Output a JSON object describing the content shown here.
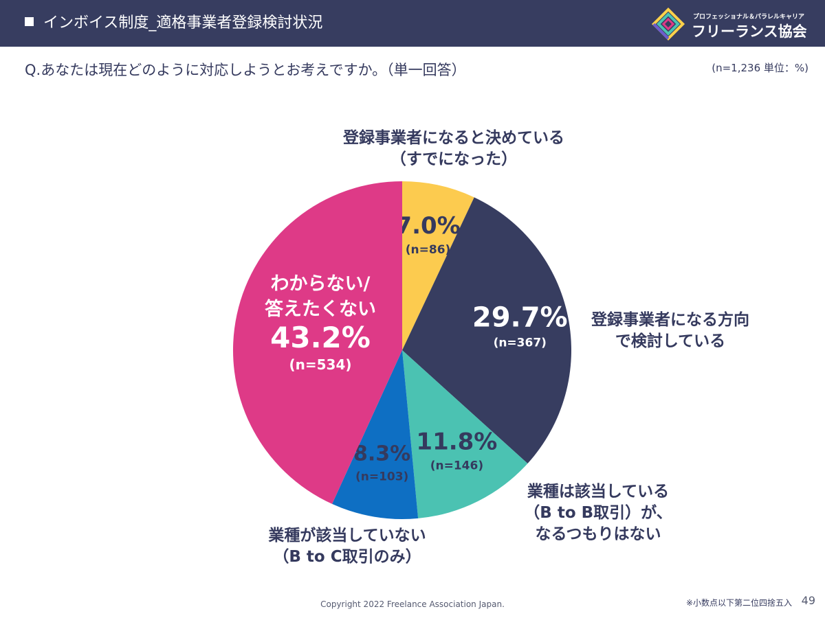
{
  "header": {
    "title": "インボイス制度_適格事業者登録検討状況",
    "logo_subtitle": "プロフェッショナル＆パラレルキャリア",
    "logo_name": "フリーランス協会"
  },
  "question": "Q.あなたは現在どのように対応しようとお考えですか。（単一回答）",
  "sample_note": "(n=1,236 単位：%)",
  "chart_data": {
    "type": "pie",
    "title": "",
    "slices": [
      {
        "line1": "登録事業者になると決めている",
        "line2": "（すでになった）",
        "value": 7.0,
        "pct": "7.0%",
        "n": "(n=86)",
        "color": "#fccb4f",
        "text_color": "#353a5e"
      },
      {
        "line1": "登録事業者になる方向",
        "line2": "で検討している",
        "value": 29.7,
        "pct": "29.7%",
        "n": "(n=367)",
        "color": "#373d60",
        "text_color": "#ffffff"
      },
      {
        "line1": "業種は該当している",
        "line2": "（B to B取引）が、",
        "line3": "なるつもりはない",
        "value": 11.8,
        "pct": "11.8%",
        "n": "(n=146)",
        "color": "#4bc2b2",
        "text_color": "#353a5e"
      },
      {
        "line1": "業種が該当していない",
        "line2": "（B to C取引のみ）",
        "value": 8.3,
        "pct": "8.3%",
        "n": "(n=103)",
        "color": "#0e6fc3",
        "text_color": "#353a5e"
      },
      {
        "line1": "わからない/",
        "line2": "答えたくない",
        "value": 43.2,
        "pct": "43.2%",
        "n": "(n=534)",
        "color": "#de3a87",
        "text_color": "#ffffff"
      }
    ]
  },
  "footer": {
    "copyright": "Copyright 2022 Freelance Association Japan.",
    "note": "※小数点以下第二位四捨五入",
    "page": "49"
  }
}
